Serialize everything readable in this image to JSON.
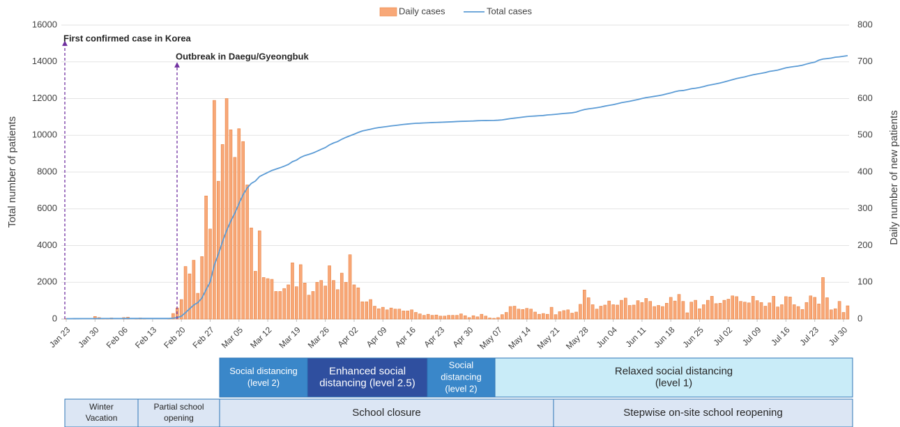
{
  "chart_data": {
    "type": "combo",
    "y_label": "Total number of patients",
    "y2_label": "Daily number of new patients",
    "ylim": [
      0,
      16000
    ],
    "yticks": [
      0,
      2000,
      4000,
      6000,
      8000,
      10000,
      12000,
      14000,
      16000
    ],
    "y2lim": [
      0,
      800
    ],
    "y2ticks": [
      0,
      100,
      200,
      300,
      400,
      500,
      600,
      700,
      800
    ],
    "grid": true,
    "legend": "top",
    "annotations": [
      "First confirmed case in Korea",
      "Outbreak in Daegu/Gyeongbuk"
    ],
    "categories": [
      "Jan 23",
      null,
      null,
      null,
      null,
      null,
      null,
      "Jan 30",
      null,
      null,
      null,
      null,
      null,
      null,
      "Feb 06",
      null,
      null,
      null,
      null,
      null,
      null,
      "Feb 13",
      null,
      null,
      null,
      null,
      null,
      null,
      "Feb 20",
      null,
      null,
      null,
      null,
      null,
      null,
      "Feb 27",
      null,
      null,
      null,
      null,
      null,
      null,
      "Mar 05",
      null,
      null,
      null,
      null,
      null,
      null,
      "Mar 12",
      null,
      null,
      null,
      null,
      null,
      null,
      "Mar 19",
      null,
      null,
      null,
      null,
      null,
      null,
      "Mar 26",
      null,
      null,
      null,
      null,
      null,
      null,
      "Apr 02",
      null,
      null,
      null,
      null,
      null,
      null,
      "Apr 09",
      null,
      null,
      null,
      null,
      null,
      null,
      "Apr 16",
      null,
      null,
      null,
      null,
      null,
      null,
      "Apr 23",
      null,
      null,
      null,
      null,
      null,
      null,
      "Apr 30",
      null,
      null,
      null,
      null,
      null,
      null,
      "May 07",
      null,
      null,
      null,
      null,
      null,
      null,
      "May 14",
      null,
      null,
      null,
      null,
      null,
      null,
      "May 21",
      null,
      null,
      null,
      null,
      null,
      null,
      "May 28",
      null,
      null,
      null,
      null,
      null,
      null,
      "Jun 04",
      null,
      null,
      null,
      null,
      null,
      null,
      "Jun 11",
      null,
      null,
      null,
      null,
      null,
      null,
      "Jun 18",
      null,
      null,
      null,
      null,
      null,
      null,
      "Jun 25",
      null,
      null,
      null,
      null,
      null,
      null,
      "Jul 02",
      null,
      null,
      null,
      null,
      null,
      null,
      "Jul 09",
      null,
      null,
      null,
      null,
      null,
      null,
      "Jul 16",
      null,
      null,
      null,
      null,
      null,
      null,
      "Jul 23",
      null,
      null,
      null,
      null,
      null,
      null,
      "Jul 30",
      null
    ],
    "series": [
      {
        "name": "Daily cases",
        "type": "bar",
        "axis": "y2",
        "color": "#f8a878",
        "values": [
          1,
          0,
          1,
          0,
          0,
          0,
          0,
          7,
          4,
          1,
          1,
          3,
          0,
          0,
          4,
          5,
          0,
          1,
          3,
          1,
          0,
          0,
          0,
          0,
          0,
          1,
          15,
          30,
          53,
          143,
          123,
          160,
          70,
          170,
          335,
          245,
          595,
          375,
          475,
          600,
          515,
          440,
          518,
          483,
          365,
          248,
          130,
          240,
          113,
          110,
          108,
          75,
          75,
          83,
          93,
          153,
          88,
          148,
          98,
          65,
          75,
          100,
          105,
          90,
          145,
          105,
          80,
          125,
          100,
          175,
          93,
          85,
          47,
          47,
          53,
          35,
          28,
          32,
          25,
          30,
          27,
          27,
          22,
          22,
          25,
          18,
          14,
          10,
          13,
          10,
          11,
          8,
          8,
          10,
          10,
          10,
          14,
          9,
          4,
          9,
          6,
          13,
          8,
          3,
          2,
          4,
          12,
          18,
          34,
          35,
          27,
          26,
          29,
          27,
          19,
          13,
          15,
          13,
          32,
          12,
          20,
          23,
          25,
          16,
          19,
          40,
          79,
          58,
          39,
          27,
          35,
          38,
          49,
          39,
          38,
          51,
          57,
          37,
          38,
          50,
          45,
          56,
          48,
          34,
          37,
          34,
          43,
          59,
          49,
          67,
          48,
          17,
          46,
          51,
          28,
          39,
          51,
          62,
          42,
          43,
          51,
          54,
          63,
          61,
          48,
          46,
          44,
          62,
          50,
          45,
          35,
          44,
          62,
          33,
          39,
          61,
          60,
          39,
          34,
          26,
          45,
          63,
          59,
          41,
          113,
          58,
          25,
          28,
          48,
          18,
          36
        ]
      },
      {
        "name": "Total cases",
        "type": "line",
        "axis": "y",
        "color": "#5b9bd5",
        "values": [
          20,
          20,
          21,
          21,
          23,
          23,
          24,
          24,
          27,
          28,
          28,
          28,
          28,
          28,
          28,
          30,
          30,
          30,
          31,
          31,
          31,
          31,
          31,
          31,
          31,
          31,
          46,
          82,
          156,
          346,
          556,
          763,
          893,
          1146,
          1595,
          2022,
          2931,
          3526,
          4212,
          4812,
          5328,
          5766,
          6284,
          6767,
          7134,
          7382,
          7513,
          7755,
          7869,
          7979,
          8086,
          8162,
          8236,
          8320,
          8413,
          8565,
          8652,
          8799,
          8897,
          8961,
          9037,
          9137,
          9241,
          9332,
          9478,
          9583,
          9661,
          9786,
          9887,
          9976,
          10062,
          10156,
          10237,
          10284,
          10331,
          10384,
          10423,
          10450,
          10480,
          10512,
          10537,
          10564,
          10591,
          10613,
          10635,
          10653,
          10661,
          10674,
          10683,
          10694,
          10702,
          10708,
          10718,
          10728,
          10738,
          10752,
          10761,
          10765,
          10774,
          10780,
          10793,
          10801,
          10804,
          10806,
          10810,
          10822,
          10840,
          10874,
          10909,
          10936,
          10962,
          10991,
          11018,
          11037,
          11050,
          11065,
          11078,
          11110,
          11122,
          11142,
          11165,
          11190,
          11206,
          11225,
          11265,
          11344,
          11402,
          11441,
          11468,
          11503,
          11541,
          11590,
          11629,
          11668,
          11719,
          11776,
          11814,
          11852,
          11902,
          11947,
          12003,
          12051,
          12085,
          12121,
          12155,
          12198,
          12257,
          12306,
          12373,
          12421,
          12438,
          12484,
          12535,
          12563,
          12602,
          12653,
          12715,
          12757,
          12800,
          12850,
          12904,
          12967,
          13030,
          13091,
          13137,
          13181,
          13244,
          13293,
          13338,
          13373,
          13417,
          13479,
          13512,
          13551,
          13612,
          13672,
          13711,
          13745,
          13771,
          13816,
          13879,
          13938,
          13979,
          14092,
          14150,
          14175,
          14203,
          14251,
          14269,
          14305,
          14336
        ]
      }
    ]
  },
  "timeline": {
    "distancing": [
      {
        "lines": [
          "Social distancing",
          "(level 2)"
        ]
      },
      {
        "lines": [
          "Enhanced social",
          "distancing (level 2.5)"
        ]
      },
      {
        "lines": [
          "Social",
          "distancing",
          "(level 2)"
        ]
      },
      {
        "lines": [
          "Relaxed social distancing",
          "(level 1)"
        ]
      }
    ],
    "school": [
      {
        "lines": [
          "Winter",
          "Vacation"
        ]
      },
      {
        "lines": [
          "Partial school",
          "opening"
        ]
      },
      {
        "lines": [
          "School closure"
        ]
      },
      {
        "lines": [
          "Stepwise on-site school reopening"
        ]
      }
    ]
  }
}
